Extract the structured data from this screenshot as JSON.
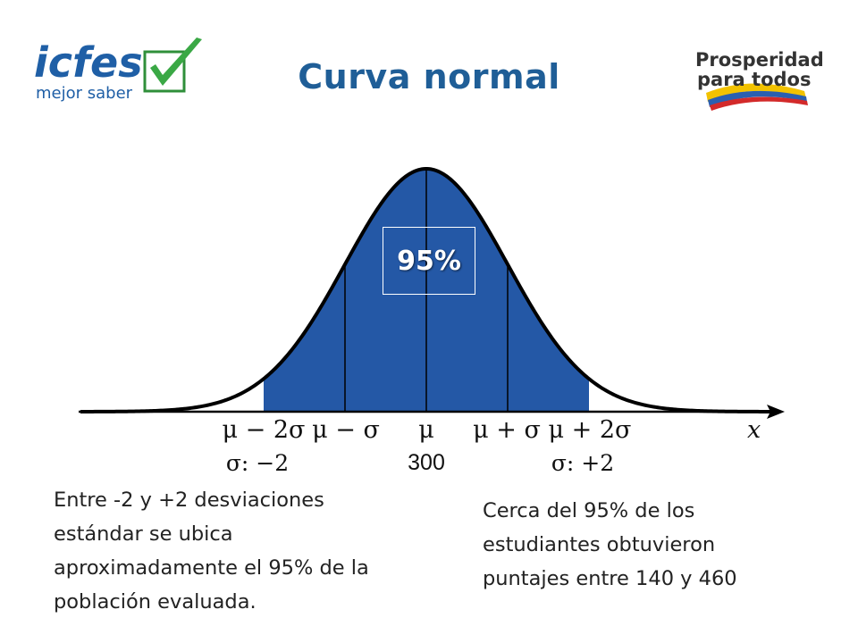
{
  "header": {
    "title": "Curva normal",
    "logo_left": {
      "name": "icfes",
      "tagline": "mejor saber"
    },
    "logo_right": {
      "line1": "Prosperidad",
      "line2": "para todos"
    }
  },
  "chart": {
    "shaded_label": "95%",
    "tick_labels": [
      "μ − 2σ",
      "μ − σ",
      "μ",
      "μ + σ",
      "μ + 2σ"
    ],
    "sigma_labels": {
      "left": "σ: −2",
      "center": "300",
      "right": "σ: +2"
    },
    "axis_label": "x",
    "colors": {
      "fill": "#2458a6",
      "curve": "#000000",
      "title": "#1f5e97"
    }
  },
  "captions": {
    "left": "Entre -2 y +2 desviaciones\nestándar se ubica\naproximadamente el 95% de la\npoblación evaluada.",
    "right": "Cerca del 95% de los\nestudiantes obtuvieron\npuntajes entre 140 y 460"
  }
}
